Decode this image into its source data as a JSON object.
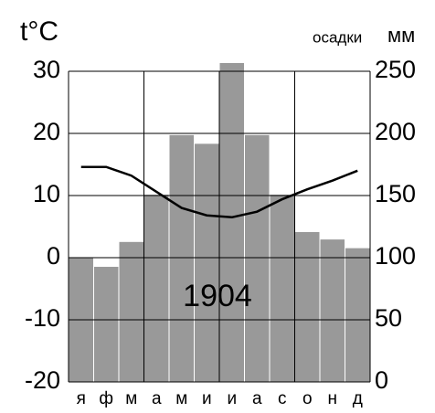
{
  "chart_data": {
    "type": "climate",
    "ylabel": "t°C",
    "y2label": "осадки",
    "y2unit": "мм",
    "annotation": "1904",
    "categories": [
      "я",
      "ф",
      "м",
      "а",
      "м",
      "и",
      "и",
      "а",
      "с",
      "о",
      "н",
      "д"
    ],
    "series": [
      {
        "type": "bar",
        "axis": "y2",
        "color": "#999999",
        "values": [
          100,
          93,
          113,
          151,
          199,
          192,
          257,
          199,
          151,
          121,
          115,
          108
        ]
      },
      {
        "type": "line",
        "axis": "y",
        "color": "#000000",
        "values": [
          14.6,
          14.6,
          13.2,
          10.6,
          8,
          6.8,
          6.5,
          7.4,
          9.4,
          11,
          12.4,
          14
        ]
      }
    ],
    "ylim": [
      -20,
      30
    ],
    "yticks": [
      -20,
      -10,
      0,
      10,
      20,
      30
    ],
    "y2lim": [
      0,
      250
    ],
    "y2ticks": [
      0,
      50,
      100,
      150,
      200,
      250
    ],
    "grid": true
  }
}
